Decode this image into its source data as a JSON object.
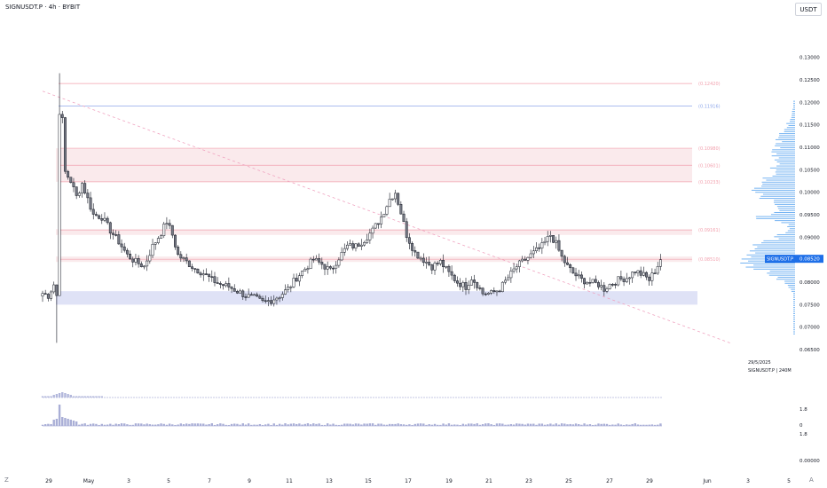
{
  "header": {
    "title": "SIGNUSDT.P · 4h · BYBIT",
    "currency_button": "USDT"
  },
  "watermark": {
    "date": "29/5/2025",
    "caption": "SIGNUSDT.P | 240M"
  },
  "footer": {
    "left_glyph": "Z",
    "right_glyph": "A"
  },
  "colors": {
    "up": "#ffffff",
    "down": "#787b86",
    "wick": "#131722",
    "zone_pink": "#f8e3e6",
    "zone_blue": "#dcdff5",
    "level_line": "#f2a1ae",
    "level_blue": "#8fa7ea",
    "trend": "#f0a4c0",
    "profile": "#5ea7f0",
    "indicator": "#8a90c8",
    "price_tag": "#1e6fe8"
  },
  "chart_data": {
    "type": "candlestick",
    "symbol": "SIGNUSDT.P",
    "interval": "4h",
    "exchange": "BYBIT",
    "y_axis": {
      "min": 0.065,
      "max": 0.1335,
      "ticks": [
        "0.13000",
        "0.12500",
        "0.12000",
        "0.11500",
        "0.11000",
        "0.10500",
        "0.10000",
        "0.09500",
        "0.09000",
        "0.08500",
        "0.08000",
        "0.07500",
        "0.07000",
        "0.06500"
      ]
    },
    "x_ticks": [
      "29",
      "May",
      "3",
      "5",
      "7",
      "9",
      "11",
      "13",
      "15",
      "17",
      "19",
      "21",
      "23",
      "25",
      "27",
      "29",
      "Jun",
      "3",
      "5"
    ],
    "last_price": {
      "label": "SIGNUSDT.P",
      "value": "0.08520"
    },
    "levels": [
      {
        "label": "(0.12420)",
        "value": 0.1242,
        "color": "pink"
      },
      {
        "label": "(0.11916)",
        "value": 0.11916,
        "color": "blue"
      },
      {
        "label": "(0.10980)",
        "value": 0.1098,
        "color": "pink"
      },
      {
        "label": "(0.10601)",
        "value": 0.10601,
        "color": "pink"
      },
      {
        "label": "(0.10233)",
        "value": 0.10233,
        "color": "pink"
      },
      {
        "label": "(0.09161)",
        "value": 0.09161,
        "color": "pink"
      },
      {
        "label": "(0.08510)",
        "value": 0.0851,
        "color": "pink"
      }
    ],
    "zones": [
      {
        "from": 0.10233,
        "to": 0.1098,
        "color": "pink"
      },
      {
        "from": 0.0905,
        "to": 0.0918,
        "color": "pink"
      },
      {
        "from": 0.0845,
        "to": 0.0857,
        "color": "pink"
      },
      {
        "from": 0.075,
        "to": 0.078,
        "color": "blue"
      }
    ],
    "trendline": {
      "from": {
        "bar": 0,
        "price": 0.1225
      },
      "to": {
        "bar": 187,
        "price": 0.0795
      }
    },
    "path": [
      [
        0,
        0.0775
      ],
      [
        2,
        0.077
      ],
      [
        4,
        0.0795
      ],
      [
        5,
        0.077
      ],
      [
        6,
        0.118
      ],
      [
        7,
        0.116
      ],
      [
        8,
        0.1045
      ],
      [
        10,
        0.1025
      ],
      [
        12,
        0.099
      ],
      [
        14,
        0.102
      ],
      [
        16,
        0.0985
      ],
      [
        18,
        0.095
      ],
      [
        21,
        0.0945
      ],
      [
        24,
        0.0915
      ],
      [
        27,
        0.089
      ],
      [
        30,
        0.086
      ],
      [
        33,
        0.0845
      ],
      [
        36,
        0.0835
      ],
      [
        39,
        0.088
      ],
      [
        42,
        0.091
      ],
      [
        44,
        0.0935
      ],
      [
        46,
        0.0905
      ],
      [
        48,
        0.086
      ],
      [
        51,
        0.0845
      ],
      [
        54,
        0.083
      ],
      [
        57,
        0.082
      ],
      [
        60,
        0.0805
      ],
      [
        63,
        0.0795
      ],
      [
        66,
        0.079
      ],
      [
        69,
        0.078
      ],
      [
        72,
        0.077
      ],
      [
        75,
        0.0765
      ],
      [
        78,
        0.0755
      ],
      [
        81,
        0.076
      ],
      [
        84,
        0.077
      ],
      [
        87,
        0.0785
      ],
      [
        90,
        0.081
      ],
      [
        93,
        0.083
      ],
      [
        96,
        0.085
      ],
      [
        99,
        0.084
      ],
      [
        102,
        0.0825
      ],
      [
        105,
        0.0855
      ],
      [
        108,
        0.088
      ],
      [
        111,
        0.088
      ],
      [
        114,
        0.0895
      ],
      [
        117,
        0.0915
      ],
      [
        120,
        0.0945
      ],
      [
        123,
        0.0985
      ],
      [
        125,
        0.1
      ],
      [
        127,
        0.0955
      ],
      [
        129,
        0.0905
      ],
      [
        132,
        0.0865
      ],
      [
        135,
        0.085
      ],
      [
        138,
        0.0835
      ],
      [
        141,
        0.0845
      ],
      [
        144,
        0.082
      ],
      [
        147,
        0.08
      ],
      [
        150,
        0.079
      ],
      [
        152,
        0.081
      ],
      [
        154,
        0.0795
      ],
      [
        156,
        0.0775
      ],
      [
        159,
        0.0775
      ],
      [
        162,
        0.0785
      ],
      [
        165,
        0.081
      ],
      [
        168,
        0.0835
      ],
      [
        171,
        0.085
      ],
      [
        174,
        0.0865
      ],
      [
        177,
        0.088
      ],
      [
        180,
        0.0905
      ],
      [
        182,
        0.0885
      ],
      [
        184,
        0.0855
      ],
      [
        186,
        0.0835
      ],
      [
        188,
        0.082
      ],
      [
        191,
        0.0805
      ],
      [
        194,
        0.08
      ],
      [
        197,
        0.0795
      ],
      [
        199,
        0.0785
      ],
      [
        201,
        0.0795
      ],
      [
        204,
        0.0805
      ],
      [
        207,
        0.081
      ],
      [
        210,
        0.0825
      ],
      [
        213,
        0.0815
      ],
      [
        215,
        0.0805
      ],
      [
        217,
        0.0825
      ],
      [
        219,
        0.085
      ]
    ],
    "volume_rows": [
      "",
      "1.8",
      "0",
      "1.8",
      "0.00000"
    ]
  }
}
